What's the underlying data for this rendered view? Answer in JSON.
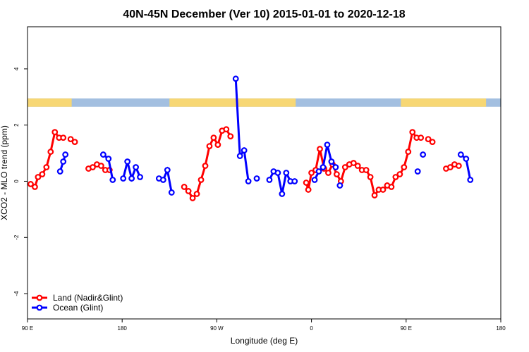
{
  "chart_data": {
    "type": "line",
    "title": "40N-45N December (Ver 10)   2015-01-01 to 2020-12-18",
    "xlabel": "Longitude (deg E)",
    "ylabel": "XCO2 - MLO trend (ppm)",
    "xlim": [
      90,
      540
    ],
    "ylim": [
      -4.9,
      5.5
    ],
    "xticks": [
      {
        "value": 90,
        "label": "90 E"
      },
      {
        "value": 180,
        "label": "180"
      },
      {
        "value": 270,
        "label": "90 W"
      },
      {
        "value": 360,
        "label": "0"
      },
      {
        "value": 450,
        "label": "90 E"
      },
      {
        "value": 540,
        "label": "180"
      }
    ],
    "yticks": [
      {
        "value": -4,
        "label": "-4"
      },
      {
        "value": -2,
        "label": "-2"
      },
      {
        "value": 0,
        "label": "0"
      },
      {
        "value": 2,
        "label": "2"
      },
      {
        "value": 4,
        "label": "4"
      }
    ],
    "grid": false,
    "legend_position": "bottom-left",
    "land_ocean_strip": {
      "y_range": [
        2.65,
        2.95
      ],
      "land_color": "#f7d774",
      "ocean_color": "#a3bfe0",
      "land_longitudes": [
        [
          90,
          132
        ],
        [
          225,
          345
        ],
        [
          445,
          526
        ]
      ]
    },
    "series": [
      {
        "name": "Land (Nadir&Glint)",
        "color": "#ff0000",
        "segments": [
          [
            [
              93,
              -0.1
            ],
            [
              97,
              -0.2
            ],
            [
              100,
              0.15
            ],
            [
              104,
              0.25
            ],
            [
              108,
              0.5
            ],
            [
              112,
              1.05
            ],
            [
              116,
              1.75
            ],
            [
              120,
              1.55
            ],
            [
              124,
              1.55
            ]
          ],
          [
            [
              131,
              1.5
            ],
            [
              135,
              1.4
            ]
          ],
          [
            [
              148,
              0.45
            ],
            [
              152,
              0.5
            ],
            [
              156,
              0.6
            ],
            [
              160,
              0.55
            ],
            [
              164,
              0.4
            ],
            [
              168,
              0.4
            ]
          ],
          [
            [
              239,
              -0.2
            ],
            [
              243,
              -0.35
            ],
            [
              247,
              -0.6
            ],
            [
              251,
              -0.45
            ],
            [
              255,
              0.05
            ],
            [
              259,
              0.55
            ],
            [
              263,
              1.25
            ],
            [
              267,
              1.55
            ],
            [
              271,
              1.3
            ],
            [
              275,
              1.8
            ],
            [
              279,
              1.85
            ],
            [
              283,
              1.6
            ]
          ],
          [
            [
              355,
              -0.05
            ],
            [
              357,
              -0.3
            ],
            [
              360,
              0.3
            ],
            [
              364,
              0.4
            ],
            [
              368,
              1.15
            ],
            [
              372,
              0.45
            ],
            [
              376,
              0.3
            ],
            [
              380,
              0.6
            ],
            [
              384,
              0.25
            ],
            [
              388,
              0.0
            ],
            [
              392,
              0.5
            ],
            [
              396,
              0.6
            ],
            [
              400,
              0.65
            ],
            [
              404,
              0.55
            ],
            [
              408,
              0.4
            ],
            [
              412,
              0.4
            ],
            [
              416,
              0.15
            ],
            [
              420,
              -0.5
            ],
            [
              424,
              -0.3
            ],
            [
              428,
              -0.3
            ],
            [
              432,
              -0.15
            ],
            [
              436,
              -0.2
            ],
            [
              440,
              0.15
            ],
            [
              444,
              0.25
            ],
            [
              448,
              0.5
            ],
            [
              452,
              1.05
            ],
            [
              456,
              1.75
            ],
            [
              460,
              1.55
            ],
            [
              464,
              1.55
            ]
          ],
          [
            [
              471,
              1.5
            ],
            [
              475,
              1.4
            ]
          ],
          [
            [
              488,
              0.45
            ],
            [
              492,
              0.5
            ],
            [
              496,
              0.6
            ],
            [
              500,
              0.55
            ]
          ]
        ]
      },
      {
        "name": "Ocean (Glint)",
        "color": "#0000ff",
        "segments": [
          [
            [
              121,
              0.35
            ],
            [
              124,
              0.7
            ],
            [
              126,
              0.95
            ]
          ],
          [
            [
              162,
              0.95
            ],
            [
              167,
              0.8
            ],
            [
              171,
              0.05
            ]
          ],
          [
            [
              181,
              0.1
            ],
            [
              185,
              0.7
            ],
            [
              189,
              0.1
            ],
            [
              193,
              0.5
            ],
            [
              197,
              0.15
            ]
          ],
          [
            [
              215,
              0.1
            ],
            [
              219,
              0.05
            ],
            [
              223,
              0.4
            ],
            [
              227,
              -0.4
            ]
          ],
          [
            [
              288,
              3.65
            ],
            [
              292,
              0.9
            ],
            [
              296,
              1.1
            ],
            [
              300,
              0.0
            ]
          ],
          [
            [
              308,
              0.1
            ]
          ],
          [
            [
              320,
              0.05
            ],
            [
              324,
              0.35
            ],
            [
              328,
              0.3
            ],
            [
              332,
              -0.45
            ],
            [
              336,
              0.3
            ],
            [
              340,
              0.0
            ],
            [
              344,
              0.0
            ]
          ],
          [
            [
              363,
              0.05
            ],
            [
              367,
              0.35
            ],
            [
              371,
              0.5
            ],
            [
              375,
              1.3
            ],
            [
              379,
              0.7
            ],
            [
              383,
              0.5
            ]
          ],
          [
            [
              387,
              -0.15
            ]
          ],
          [
            [
              461,
              0.35
            ]
          ],
          [
            [
              466,
              0.95
            ]
          ],
          [
            [
              502,
              0.95
            ],
            [
              507,
              0.8
            ],
            [
              511,
              0.05
            ]
          ]
        ]
      }
    ]
  }
}
